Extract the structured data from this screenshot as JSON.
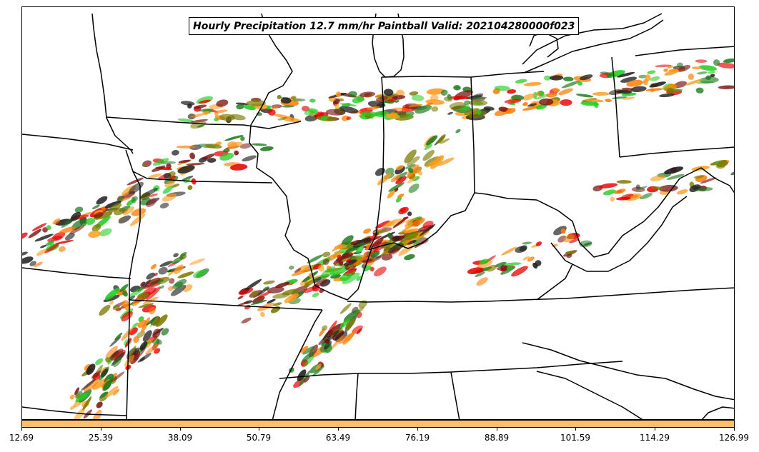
{
  "title": "Hourly Precipitation 12.7 mm/hr Paintball Valid: 202104280000f023",
  "colors": {
    "member_colors": [
      "#1e7a1e",
      "#7a7a00",
      "#e80000",
      "#ff7a00",
      "#7a1414",
      "#1e1e1e",
      "#22cc22",
      "#ff9a1a"
    ],
    "colorbar": "#fdbf6f",
    "boundary": "#000000"
  },
  "colorbar": {
    "min": 12.69,
    "max": 126.99,
    "tick_labels": [
      "12.69",
      "25.39",
      "38.09",
      "50.79",
      "63.49",
      "76.19",
      "88.89",
      "101.59",
      "114.29",
      "126.99"
    ]
  }
}
